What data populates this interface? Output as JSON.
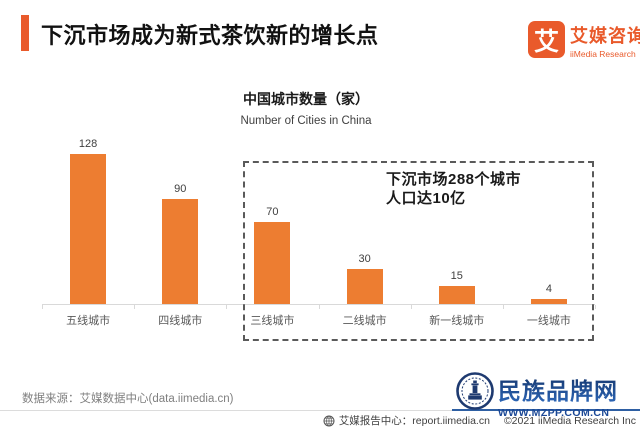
{
  "header": {
    "title": "下沉市场成为新式茶饮新的增长点",
    "logo": {
      "glyph": "艾",
      "name_cn": "艾媒咨询",
      "name_en": "iiMedia Research"
    }
  },
  "chart_data": {
    "type": "bar",
    "title": "中国城市数量（家）",
    "subtitle": "Number of Cities in China",
    "categories": [
      "五线城市",
      "四线城市",
      "三线城市",
      "二线城市",
      "新一线城市",
      "一线城市"
    ],
    "values": [
      128,
      90,
      70,
      30,
      15,
      4
    ],
    "xlabel": "",
    "ylabel": "",
    "ylim": [
      0,
      140
    ],
    "grid": false,
    "data_labels": true,
    "bar_color": "#ED7D31",
    "annotation": {
      "lines": [
        "下沉市场288个城市",
        "人口达10亿"
      ],
      "box_categories": [
        "三线城市",
        "二线城市",
        "新一线城市",
        "一线城市"
      ]
    }
  },
  "footer": {
    "source": "数据来源：艾媒数据中心(data.iimedia.cn)",
    "brand": {
      "name": "民族品牌网",
      "url": "WWW.MZPP.COM.CN"
    },
    "report_center": "艾媒报告中心：report.iimedia.cn",
    "copyright": "©2021  iiMedia Research  Inc"
  },
  "colors": {
    "accent_orange": "#E95A2B",
    "bar_orange": "#ED7D31",
    "navy": "#1E3A70",
    "brand_blue": "#1B4896"
  }
}
